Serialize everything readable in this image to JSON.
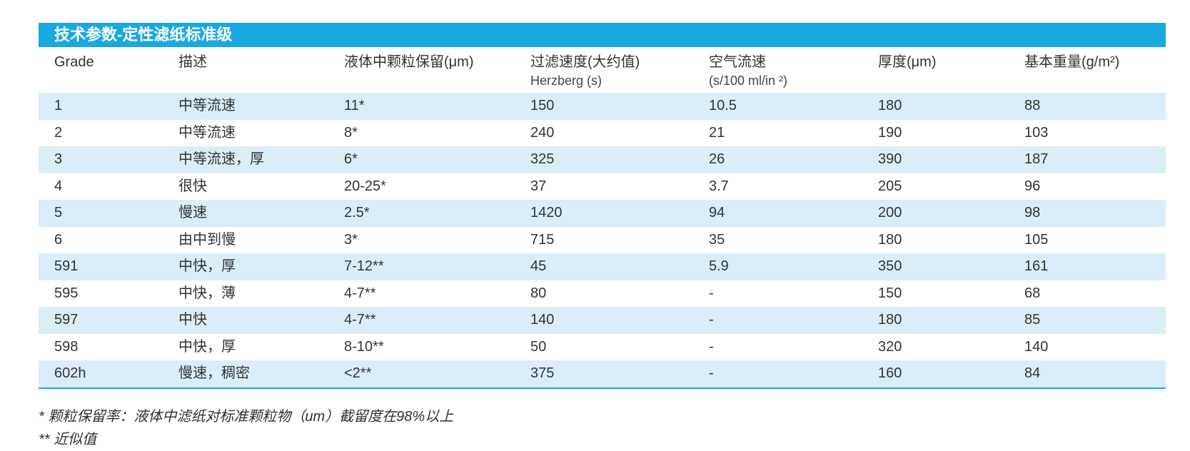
{
  "title": "技术参数-定性滤纸标准级",
  "headers": [
    {
      "main": "Grade",
      "sub": ""
    },
    {
      "main": "描述",
      "sub": ""
    },
    {
      "main": "液体中颗粒保留(μm)",
      "sub": ""
    },
    {
      "main": "过滤速度(大约值)",
      "sub": "Herzberg (s)"
    },
    {
      "main": "空气流速",
      "sub": "(s/100 ml/in ²)"
    },
    {
      "main": "厚度(μm)",
      "sub": ""
    },
    {
      "main": "基本重量(g/m²)",
      "sub": ""
    }
  ],
  "rows": [
    [
      "1",
      "中等流速",
      "11*",
      "150",
      "10.5",
      "180",
      "88"
    ],
    [
      "2",
      "中等流速",
      "8*",
      "240",
      "21",
      "190",
      "103"
    ],
    [
      "3",
      "中等流速，厚",
      "6*",
      "325",
      "26",
      "390",
      "187"
    ],
    [
      "4",
      "很快",
      "20-25*",
      "37",
      "3.7",
      "205",
      "96"
    ],
    [
      "5",
      "慢速",
      "2.5*",
      "1420",
      "94",
      "200",
      "98"
    ],
    [
      "6",
      "由中到慢",
      "3*",
      "715",
      "35",
      "180",
      "105"
    ],
    [
      "591",
      "中快，厚",
      "7-12**",
      "45",
      "5.9",
      "350",
      "161"
    ],
    [
      "595",
      "中快，薄",
      "4-7**",
      "80",
      "-",
      "150",
      "68"
    ],
    [
      "597",
      "中快",
      "4-7**",
      "140",
      "-",
      "180",
      "85"
    ],
    [
      "598",
      "中快，厚",
      "8-10**",
      "50",
      "-",
      "320",
      "140"
    ],
    [
      "602h",
      "慢速，稠密",
      "<2**",
      "375",
      "-",
      "160",
      "84"
    ]
  ],
  "notes": [
    "* 颗粒保留率：液体中滤纸对标准颗粒物（um）截留度在98%以上",
    "** 近似值"
  ],
  "colors": {
    "accent": "#1aa8e0",
    "row_alt": "#d9eef8"
  }
}
